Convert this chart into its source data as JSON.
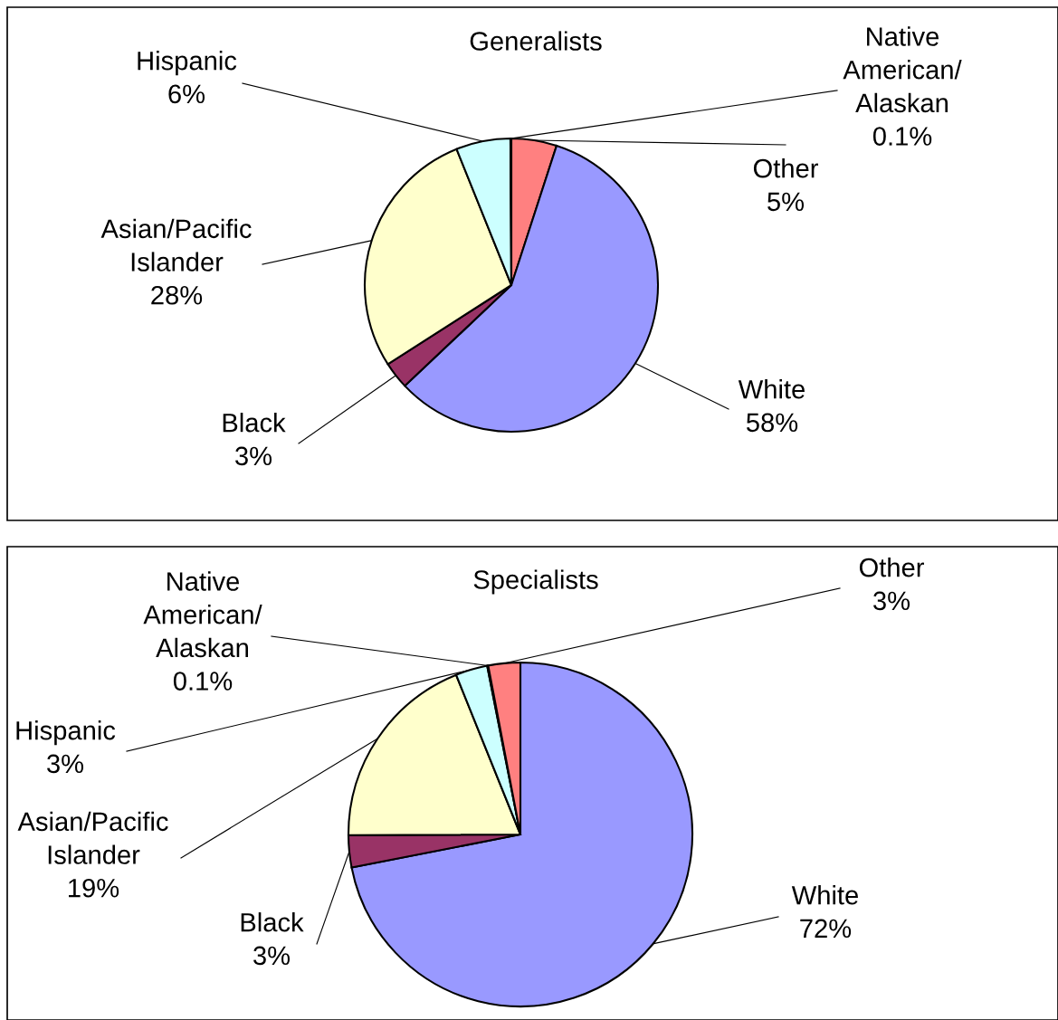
{
  "chart_data": [
    {
      "type": "pie",
      "title": "Generalists",
      "categories": [
        "Other",
        "White",
        "Black",
        "Asian/Pacific\nIslander",
        "Hispanic",
        "Native\nAmerican/\nAlaskan"
      ],
      "values": [
        5,
        58,
        3,
        28,
        6,
        0.1
      ],
      "value_labels": [
        "5%",
        "58%",
        "3%",
        "28%",
        "6%",
        "0.1%"
      ],
      "colors": [
        "#ff8080",
        "#9999ff",
        "#993366",
        "#ffffcc",
        "#ccffff",
        "#660066"
      ]
    },
    {
      "type": "pie",
      "title": "Specialists",
      "categories": [
        "White",
        "Black",
        "Asian/Pacific\nIslander",
        "Hispanic",
        "Native\nAmerican/\nAlaskan",
        "Other"
      ],
      "values": [
        72,
        3,
        19,
        3,
        0.1,
        3
      ],
      "value_labels": [
        "72%",
        "3%",
        "19%",
        "3%",
        "0.1%",
        "3%"
      ],
      "colors": [
        "#9999ff",
        "#993366",
        "#ffffcc",
        "#ccffff",
        "#660066",
        "#ff8080"
      ]
    }
  ]
}
